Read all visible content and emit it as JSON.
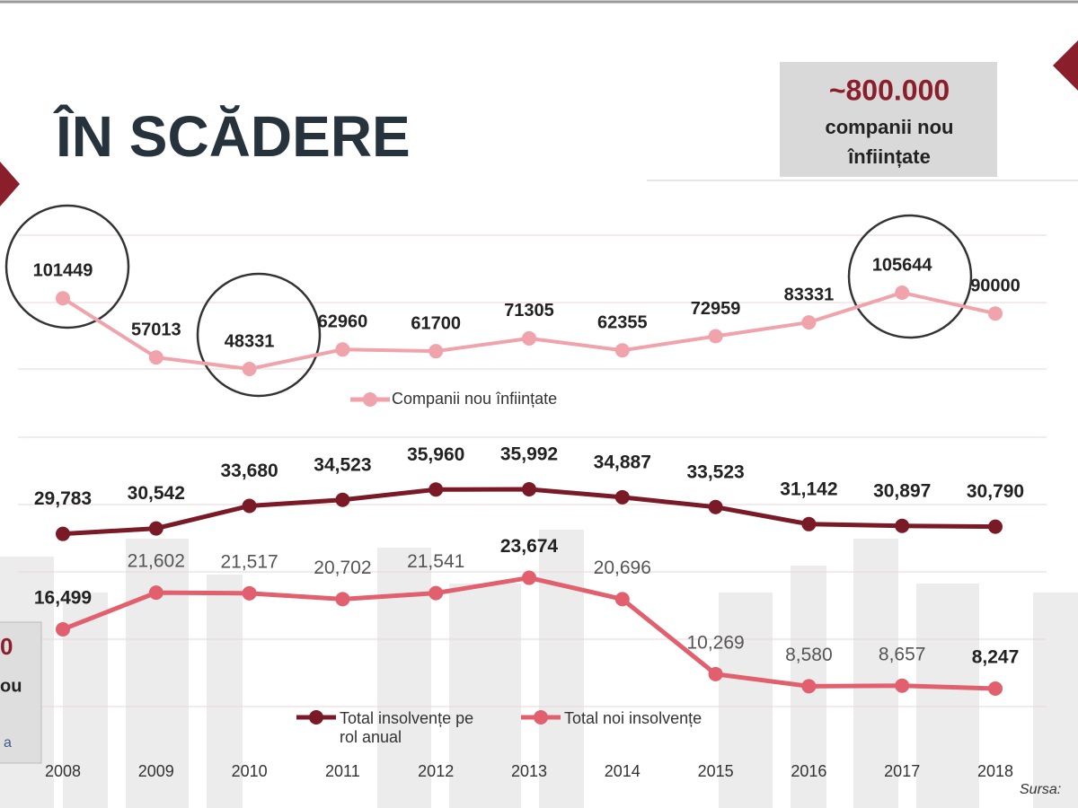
{
  "title": "ÎN SCĂDERE",
  "highlight_box": {
    "value": "~800.000",
    "line1": "companii nou",
    "line2": "înființate"
  },
  "left_box": {
    "line1": "0",
    "line2": "ou",
    "line3": "a"
  },
  "source": "Sursa:",
  "chart_data": [
    {
      "type": "line",
      "series": [
        {
          "name": "Companii nou înființate",
          "color": "#f0a3ab",
          "values": [
            101449,
            57013,
            48331,
            62960,
            61700,
            71305,
            62355,
            72959,
            83331,
            105644,
            90000
          ]
        }
      ]
    },
    {
      "type": "line",
      "categories": [
        "2008",
        "2009",
        "2010",
        "2011",
        "2012",
        "2013",
        "2014",
        "2015",
        "2016",
        "2017",
        "2018"
      ],
      "series": [
        {
          "name": "Total insolvențe pe rol anual",
          "color": "#7a1a27",
          "values": [
            29783,
            30542,
            33680,
            34523,
            35960,
            35992,
            34887,
            33523,
            31142,
            30897,
            30790
          ],
          "value_labels": [
            "29,783",
            "30,542",
            "33,680",
            "34,523",
            "35,960",
            "35,992",
            "34,887",
            "33,523",
            "31,142",
            "30,897",
            "30,790"
          ]
        },
        {
          "name": "Total noi insolvențe",
          "color": "#e2606e",
          "values": [
            16499,
            21602,
            21517,
            20702,
            21541,
            23674,
            20696,
            10269,
            8580,
            8657,
            8247
          ],
          "value_labels": [
            "16,499",
            "21,602",
            "21,517",
            "20,702",
            "21,541",
            "23,674",
            "20,696",
            "10,269",
            "8,580",
            "8,657",
            "8,247"
          ]
        }
      ]
    }
  ]
}
